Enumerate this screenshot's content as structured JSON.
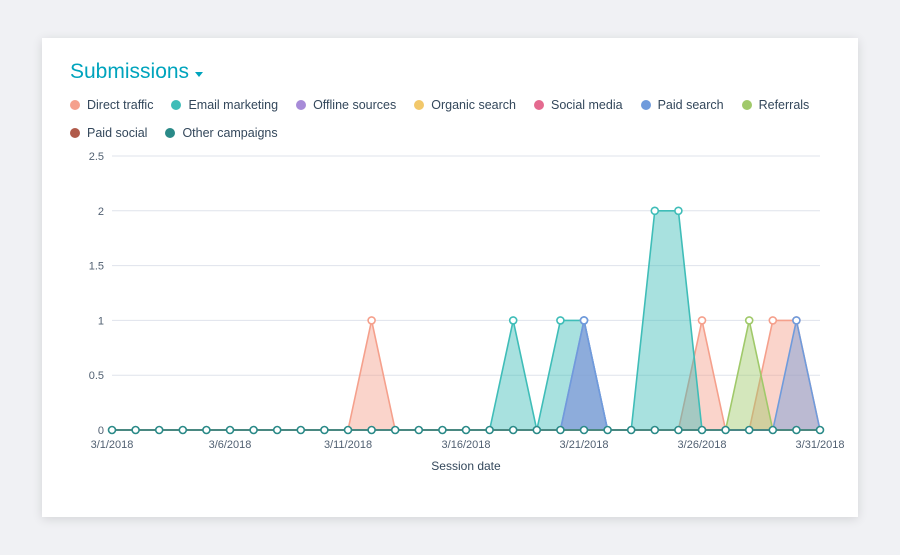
{
  "title": "Submissions",
  "chart": {
    "type": "area",
    "xlabel": "Session date",
    "ylim": [
      0,
      2.5
    ],
    "ytick_step": 0.5,
    "yticks": [
      0,
      0.5,
      1,
      1.5,
      2,
      2.5
    ],
    "background_color": "#ffffff",
    "grid_color": "#dfe3eb",
    "axis_text_color": "#516072",
    "axis_text_fontsize": 11,
    "label_fontsize": 12,
    "marker_style": "circle",
    "marker_radius": 3.5,
    "marker_stroke_width": 1.6,
    "marker_fill": "#ffffff",
    "area_opacity": 0.45,
    "line_width": 1.6,
    "dates": [
      "3/1/2018",
      "3/2/2018",
      "3/3/2018",
      "3/4/2018",
      "3/5/2018",
      "3/6/2018",
      "3/7/2018",
      "3/8/2018",
      "3/9/2018",
      "3/10/2018",
      "3/11/2018",
      "3/12/2018",
      "3/13/2018",
      "3/14/2018",
      "3/15/2018",
      "3/16/2018",
      "3/17/2018",
      "3/18/2018",
      "3/19/2018",
      "3/20/2018",
      "3/21/2018",
      "3/22/2018",
      "3/23/2018",
      "3/24/2018",
      "3/25/2018",
      "3/26/2018",
      "3/27/2018",
      "3/28/2018",
      "3/29/2018",
      "3/30/2018",
      "3/31/2018"
    ],
    "xtick_indices": [
      0,
      5,
      10,
      15,
      20,
      25,
      30
    ],
    "xtick_labels": [
      "3/1/2018",
      "3/6/2018",
      "3/11/2018",
      "3/16/2018",
      "3/21/2018",
      "3/26/2018",
      "3/31/2018"
    ],
    "series": [
      {
        "name": "Direct traffic",
        "color": "#f5a08c",
        "values": [
          0,
          0,
          0,
          0,
          0,
          0,
          0,
          0,
          0,
          0,
          0,
          1,
          0,
          0,
          0,
          0,
          0,
          0,
          0,
          0,
          0,
          0,
          0,
          0,
          0,
          1,
          0,
          0,
          1,
          1,
          0
        ]
      },
      {
        "name": "Email marketing",
        "color": "#3fbdb8",
        "values": [
          0,
          0,
          0,
          0,
          0,
          0,
          0,
          0,
          0,
          0,
          0,
          0,
          0,
          0,
          0,
          0,
          0,
          1,
          0,
          1,
          1,
          0,
          0,
          2,
          2,
          0,
          0,
          0,
          0,
          0,
          0
        ]
      },
      {
        "name": "Offline sources",
        "color": "#a78bd8",
        "values": [
          0,
          0,
          0,
          0,
          0,
          0,
          0,
          0,
          0,
          0,
          0,
          0,
          0,
          0,
          0,
          0,
          0,
          0,
          0,
          0,
          1,
          0,
          0,
          0,
          0,
          0,
          0,
          0,
          0,
          0,
          0
        ]
      },
      {
        "name": "Organic search",
        "color": "#f2c86b",
        "values": [
          0,
          0,
          0,
          0,
          0,
          0,
          0,
          0,
          0,
          0,
          0,
          0,
          0,
          0,
          0,
          0,
          0,
          0,
          0,
          0,
          0,
          0,
          0,
          0,
          0,
          0,
          0,
          0,
          0,
          0,
          0
        ]
      },
      {
        "name": "Social media",
        "color": "#e46a8f",
        "values": [
          0,
          0,
          0,
          0,
          0,
          0,
          0,
          0,
          0,
          0,
          0,
          0,
          0,
          0,
          0,
          0,
          0,
          0,
          0,
          0,
          0,
          0,
          0,
          0,
          0,
          0,
          0,
          0,
          0,
          0,
          0
        ]
      },
      {
        "name": "Paid search",
        "color": "#6f9bdc",
        "values": [
          0,
          0,
          0,
          0,
          0,
          0,
          0,
          0,
          0,
          0,
          0,
          0,
          0,
          0,
          0,
          0,
          0,
          0,
          0,
          0,
          1,
          0,
          0,
          0,
          0,
          0,
          0,
          0,
          0,
          1,
          0
        ]
      },
      {
        "name": "Referrals",
        "color": "#a0c96a",
        "values": [
          0,
          0,
          0,
          0,
          0,
          0,
          0,
          0,
          0,
          0,
          0,
          0,
          0,
          0,
          0,
          0,
          0,
          0,
          0,
          0,
          0,
          0,
          0,
          0,
          0,
          0,
          0,
          1,
          0,
          0,
          0
        ]
      },
      {
        "name": "Paid social",
        "color": "#b05a4a",
        "values": [
          0,
          0,
          0,
          0,
          0,
          0,
          0,
          0,
          0,
          0,
          0,
          0,
          0,
          0,
          0,
          0,
          0,
          0,
          0,
          0,
          0,
          0,
          0,
          0,
          0,
          0,
          0,
          0,
          0,
          0,
          0
        ]
      },
      {
        "name": "Other campaigns",
        "color": "#2a8a88",
        "values": [
          0,
          0,
          0,
          0,
          0,
          0,
          0,
          0,
          0,
          0,
          0,
          0,
          0,
          0,
          0,
          0,
          0,
          0,
          0,
          0,
          0,
          0,
          0,
          0,
          0,
          0,
          0,
          0,
          0,
          0,
          0
        ]
      }
    ]
  }
}
